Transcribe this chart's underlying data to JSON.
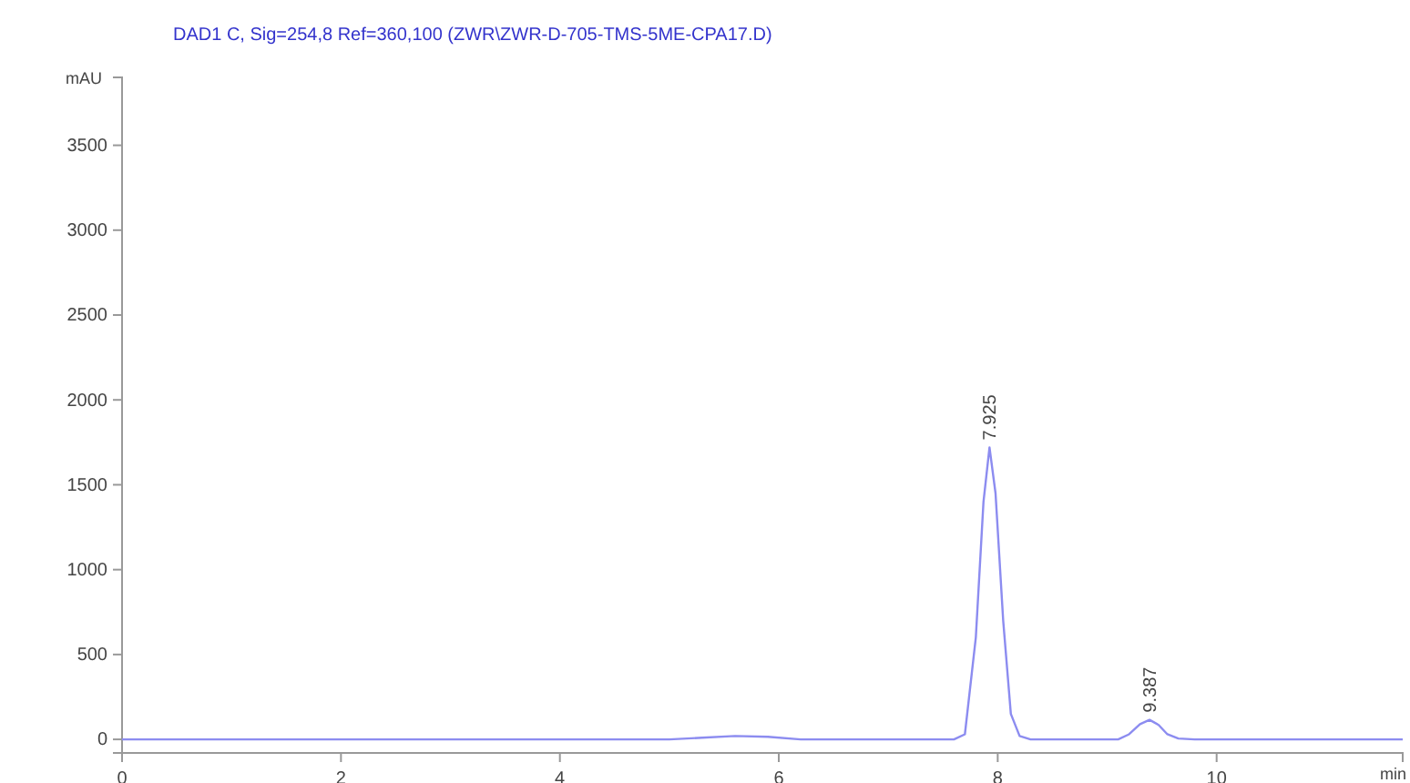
{
  "chart_data": {
    "type": "line",
    "title": "DAD1 C, Sig=254,8 Ref=360,100 (ZWR\\ZWR-D-705-TMS-5ME-CPA17.D)",
    "ylabel": "mAU",
    "xlabel": "min",
    "x": [
      0,
      1,
      2,
      3,
      4,
      5,
      5.3,
      5.6,
      5.9,
      6.2,
      7,
      7.6,
      7.7,
      7.8,
      7.87,
      7.925,
      7.98,
      8.05,
      8.12,
      8.2,
      8.3,
      9.1,
      9.2,
      9.3,
      9.387,
      9.47,
      9.55,
      9.65,
      9.8,
      10.5,
      11.7
    ],
    "series": [
      {
        "color": "#8c8cf0",
        "values": [
          0,
          0,
          0,
          0,
          0,
          0,
          10,
          20,
          15,
          0,
          0,
          0,
          30,
          600,
          1400,
          1720,
          1450,
          700,
          150,
          20,
          0,
          0,
          30,
          90,
          115,
          85,
          30,
          5,
          0,
          0,
          0
        ]
      }
    ],
    "xlim": [
      0,
      11.7
    ],
    "xticks": [
      0,
      2,
      4,
      6,
      8,
      10
    ],
    "ylim": [
      -80,
      3900
    ],
    "yticks": [
      0,
      500,
      1000,
      1500,
      2000,
      2500,
      3000,
      3500
    ],
    "grid": false,
    "marker": "none",
    "line_style": "solid",
    "annotations": [
      {
        "text": "7.925",
        "x": 7.925,
        "y": 1720
      },
      {
        "text": "9.387",
        "x": 9.387,
        "y": 115
      }
    ]
  }
}
